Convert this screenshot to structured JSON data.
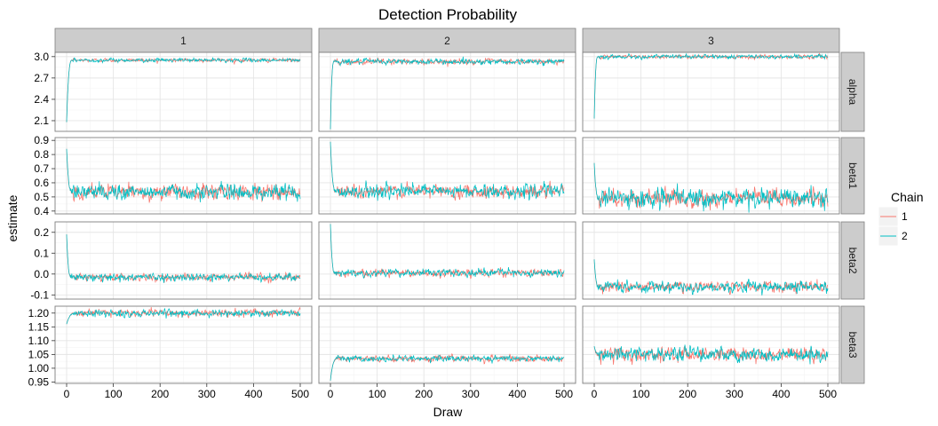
{
  "chart_data": {
    "type": "line",
    "title": "Detection Probability",
    "xlabel": "Draw",
    "ylabel": "estimate",
    "xlim": [
      0,
      500
    ],
    "x_ticks": [
      0,
      100,
      200,
      300,
      400,
      500
    ],
    "columns": [
      "1",
      "2",
      "3"
    ],
    "rows": [
      "alpha",
      "beta1",
      "beta2",
      "beta3"
    ],
    "legend": {
      "title": "Chain",
      "entries": [
        "1",
        "2"
      ],
      "placement": "right"
    },
    "colors": {
      "1": "#F8766D",
      "2": "#00BFC4"
    },
    "grid": true,
    "row_axes": {
      "alpha": {
        "ylim": [
          1.95,
          3.06
        ],
        "ticks": [
          2.1,
          2.4,
          2.7,
          3.0
        ],
        "tick_labels": [
          "2.1",
          "2.4",
          "2.7",
          "3.0"
        ]
      },
      "beta1": {
        "ylim": [
          0.38,
          0.92
        ],
        "ticks": [
          0.4,
          0.5,
          0.6,
          0.7,
          0.8,
          0.9
        ],
        "tick_labels": [
          "0.4",
          "0.5",
          "0.6",
          "0.7",
          "0.8",
          "0.9"
        ]
      },
      "beta2": {
        "ylim": [
          -0.12,
          0.25
        ],
        "ticks": [
          -0.1,
          0.0,
          0.1,
          0.2
        ],
        "tick_labels": [
          "-0.1",
          "0.0",
          "0.1",
          "0.2"
        ]
      },
      "beta3": {
        "ylim": [
          0.945,
          1.225
        ],
        "ticks": [
          0.95,
          1.0,
          1.05,
          1.1,
          1.15,
          1.2
        ],
        "tick_labels": [
          "0.95",
          "1.00",
          "1.05",
          "1.10",
          "1.15",
          "1.20"
        ]
      }
    },
    "panels": [
      {
        "column": "1",
        "row": "alpha",
        "start": 2.08,
        "level": 2.95,
        "noise": 0.012,
        "burn_in": 12
      },
      {
        "column": "2",
        "row": "alpha",
        "start": 1.98,
        "level": 2.93,
        "noise": 0.018,
        "burn_in": 8
      },
      {
        "column": "3",
        "row": "alpha",
        "start": 2.13,
        "level": 3.0,
        "noise": 0.013,
        "burn_in": 8
      },
      {
        "column": "1",
        "row": "beta1",
        "start": 0.84,
        "level": 0.535,
        "noise": 0.025,
        "burn_in": 12
      },
      {
        "column": "2",
        "row": "beta1",
        "start": 0.89,
        "level": 0.54,
        "noise": 0.022,
        "burn_in": 12
      },
      {
        "column": "3",
        "row": "beta1",
        "start": 0.74,
        "level": 0.49,
        "noise": 0.03,
        "burn_in": 10
      },
      {
        "column": "1",
        "row": "beta2",
        "start": 0.19,
        "level": -0.015,
        "noise": 0.008,
        "burn_in": 10
      },
      {
        "column": "2",
        "row": "beta2",
        "start": 0.24,
        "level": 0.005,
        "noise": 0.008,
        "burn_in": 10
      },
      {
        "column": "3",
        "row": "beta2",
        "start": 0.07,
        "level": -0.06,
        "noise": 0.012,
        "burn_in": 10
      },
      {
        "column": "1",
        "row": "beta3",
        "start": 1.16,
        "level": 1.2,
        "noise": 0.006,
        "burn_in": 20
      },
      {
        "column": "2",
        "row": "beta3",
        "start": 0.955,
        "level": 1.035,
        "noise": 0.005,
        "burn_in": 15
      },
      {
        "column": "3",
        "row": "beta3",
        "start": 1.08,
        "level": 1.05,
        "noise": 0.012,
        "burn_in": 10
      }
    ]
  }
}
